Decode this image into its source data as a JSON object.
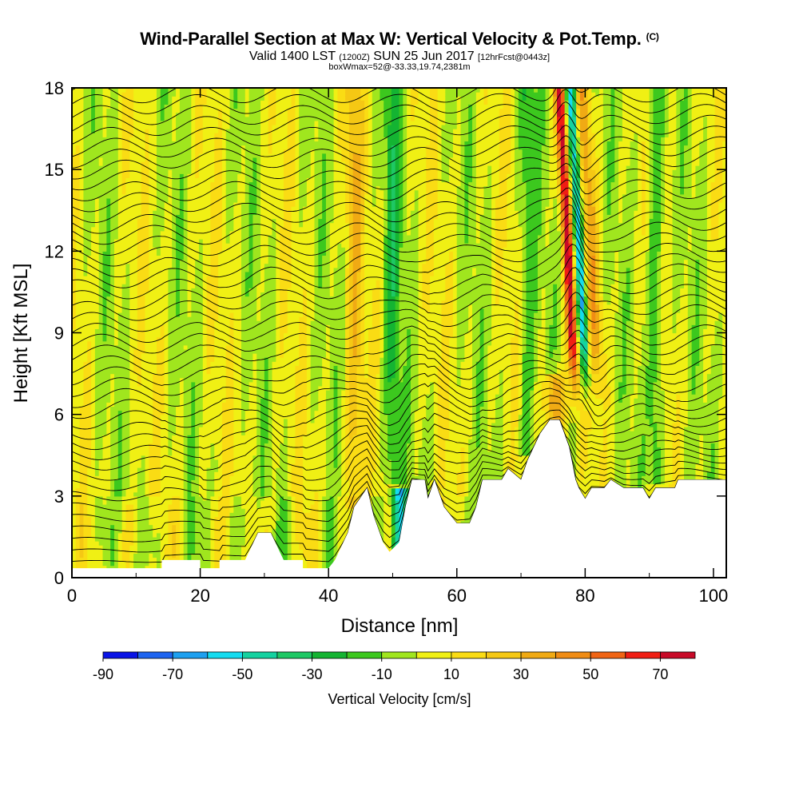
{
  "header": {
    "title": "Wind-Parallel Section at Max W: Vertical Velocity & Pot.Temp.",
    "title_tag": "(C)",
    "subtitle_a": "Valid 1400 LST",
    "subtitle_b": "(1200Z)",
    "subtitle_c": "SUN 25 Jun 2017",
    "subtitle_d": "[12hrFcst@0443z]",
    "subtitle2": "boxWmax=52@-33.33,19.74,2381m"
  },
  "chart_data": {
    "type": "heatmap",
    "title": "Wind-Parallel Section at Max W: Vertical Velocity & Pot.Temp.",
    "xlabel": "Distance [nm]",
    "ylabel": "Height [Kft MSL]",
    "xlim": [
      0,
      102
    ],
    "ylim": [
      0,
      18
    ],
    "xticks": [
      0,
      20,
      40,
      60,
      80,
      100
    ],
    "yticks": [
      0,
      3,
      6,
      9,
      12,
      15,
      18
    ],
    "colorbar": {
      "title": "Vertical Velocity [cm/s]",
      "levels": [
        -90,
        -80,
        -70,
        -60,
        -50,
        -40,
        -30,
        -20,
        -10,
        0,
        10,
        20,
        30,
        40,
        50,
        60,
        70,
        80
      ],
      "labels": [
        "-90",
        "-70",
        "-50",
        "-30",
        "-10",
        "10",
        "30",
        "50",
        "70"
      ],
      "label_values": [
        -90,
        -70,
        -50,
        -30,
        -10,
        10,
        30,
        50,
        70
      ],
      "colors": [
        "#0a14e6",
        "#1e64f0",
        "#1ea0f0",
        "#14dcf0",
        "#14d2a0",
        "#1ec864",
        "#14b432",
        "#3cc81e",
        "#a0e61e",
        "#f0f014",
        "#fadc14",
        "#f5c814",
        "#f0aa14",
        "#f08c14",
        "#f06414",
        "#f01e14",
        "#c80a28"
      ]
    },
    "velocity_features": [
      {
        "kind": "updraft",
        "x": 78.5,
        "z_bottom": 6.5,
        "z_top": 18,
        "peak": 70,
        "lean": "backward-upward"
      },
      {
        "kind": "downdraft",
        "x": 80,
        "z_bottom": 6.5,
        "z_top": 18,
        "peak": -60
      },
      {
        "kind": "downdraft",
        "x": 51,
        "z_bottom": 1.5,
        "z_top": 2.8,
        "peak": -80
      },
      {
        "kind": "updraft",
        "x": 44,
        "z_bottom": 3,
        "z_top": 18,
        "peak": 30
      },
      {
        "kind": "updraft",
        "x": 75,
        "z_bottom": 5,
        "z_top": 7,
        "peak": 40
      },
      {
        "kind": "downdraft",
        "x": 91,
        "z_bottom": 4,
        "z_top": 18,
        "peak": -30
      },
      {
        "kind": "downdraft",
        "x": 50,
        "z_bottom": 4,
        "z_top": 18,
        "peak": -30
      },
      {
        "kind": "downdraft",
        "x": 71,
        "z_bottom": 5,
        "z_top": 18,
        "peak": -25
      }
    ],
    "terrain": [
      {
        "x": 0,
        "z": 0.35
      },
      {
        "x": 14,
        "z": 0.35
      },
      {
        "x": 14,
        "z": 0.65
      },
      {
        "x": 20,
        "z": 0.65
      },
      {
        "x": 20,
        "z": 0.35
      },
      {
        "x": 23,
        "z": 0.35
      },
      {
        "x": 23,
        "z": 0.65
      },
      {
        "x": 27,
        "z": 0.65
      },
      {
        "x": 29,
        "z": 1.65
      },
      {
        "x": 31,
        "z": 1.65
      },
      {
        "x": 33,
        "z": 0.65
      },
      {
        "x": 36,
        "z": 0.65
      },
      {
        "x": 36,
        "z": 0.35
      },
      {
        "x": 40,
        "z": 0.35
      },
      {
        "x": 41,
        "z": 0.65
      },
      {
        "x": 43,
        "z": 1.65
      },
      {
        "x": 44,
        "z": 2.6
      },
      {
        "x": 46,
        "z": 3.3
      },
      {
        "x": 47,
        "z": 2.3
      },
      {
        "x": 48.5,
        "z": 1.3
      },
      {
        "x": 49.5,
        "z": 0.95
      },
      {
        "x": 51,
        "z": 1.3
      },
      {
        "x": 52,
        "z": 2.6
      },
      {
        "x": 53,
        "z": 3.6
      },
      {
        "x": 55,
        "z": 3.6
      },
      {
        "x": 55.5,
        "z": 2.9
      },
      {
        "x": 56.5,
        "z": 3.6
      },
      {
        "x": 58,
        "z": 2.6
      },
      {
        "x": 60,
        "z": 2.0
      },
      {
        "x": 62,
        "z": 2.0
      },
      {
        "x": 63,
        "z": 2.6
      },
      {
        "x": 64,
        "z": 3.6
      },
      {
        "x": 67,
        "z": 3.6
      },
      {
        "x": 68,
        "z": 4.0
      },
      {
        "x": 70,
        "z": 3.6
      },
      {
        "x": 71,
        "z": 4.3
      },
      {
        "x": 73,
        "z": 5.3
      },
      {
        "x": 74.5,
        "z": 5.8
      },
      {
        "x": 76,
        "z": 5.8
      },
      {
        "x": 77.5,
        "z": 4.8
      },
      {
        "x": 78.5,
        "z": 3.6
      },
      {
        "x": 79,
        "z": 3.3
      },
      {
        "x": 80,
        "z": 2.9
      },
      {
        "x": 81,
        "z": 3.3
      },
      {
        "x": 83,
        "z": 3.3
      },
      {
        "x": 84,
        "z": 3.6
      },
      {
        "x": 86,
        "z": 3.3
      },
      {
        "x": 88,
        "z": 3.3
      },
      {
        "x": 89,
        "z": 3.3
      },
      {
        "x": 90,
        "z": 2.9
      },
      {
        "x": 91,
        "z": 3.3
      },
      {
        "x": 94,
        "z": 3.3
      },
      {
        "x": 94.5,
        "z": 3.6
      },
      {
        "x": 102,
        "z": 3.6
      }
    ]
  }
}
